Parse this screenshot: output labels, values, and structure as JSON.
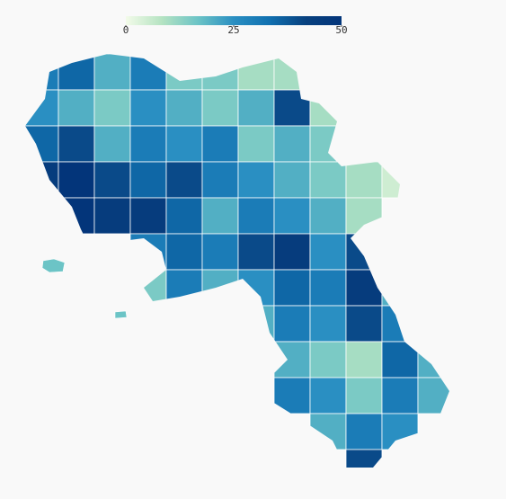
{
  "map": {
    "type": "choropleth",
    "colorbar": {
      "clim": [
        0,
        50
      ],
      "ticks": [
        0,
        25,
        50
      ],
      "colors": [
        "#f3fbe9",
        "#b5e3c2",
        "#6cc4c6",
        "#2a8fc2",
        "#1170b0",
        "#08417f",
        "#03357a"
      ]
    },
    "cells": [
      [
        30,
        35,
        20,
        30,
        15,
        15,
        10,
        10,
        null,
        null,
        null,
        null
      ],
      [
        25,
        20,
        15,
        25,
        20,
        15,
        20,
        40,
        10,
        null,
        null,
        null
      ],
      [
        35,
        40,
        20,
        30,
        25,
        30,
        15,
        20,
        15,
        15,
        null,
        null
      ],
      [
        45,
        50,
        40,
        35,
        40,
        30,
        25,
        20,
        15,
        10,
        5,
        null
      ],
      [
        null,
        50,
        45,
        45,
        35,
        20,
        30,
        25,
        20,
        10,
        null,
        null
      ],
      [
        null,
        null,
        null,
        30,
        35,
        30,
        40,
        45,
        25,
        40,
        null,
        null
      ],
      [
        null,
        null,
        null,
        15,
        30,
        20,
        25,
        35,
        30,
        45,
        20,
        null
      ],
      [
        null,
        null,
        null,
        null,
        null,
        null,
        20,
        30,
        25,
        40,
        30,
        null
      ],
      [
        null,
        null,
        null,
        null,
        null,
        null,
        null,
        20,
        15,
        10,
        35,
        20
      ],
      [
        null,
        null,
        null,
        null,
        null,
        null,
        null,
        30,
        25,
        15,
        30,
        20
      ],
      [
        null,
        null,
        null,
        null,
        null,
        null,
        null,
        null,
        20,
        30,
        25,
        null
      ],
      [
        null,
        null,
        null,
        null,
        null,
        null,
        null,
        null,
        null,
        40,
        null,
        null
      ]
    ]
  }
}
